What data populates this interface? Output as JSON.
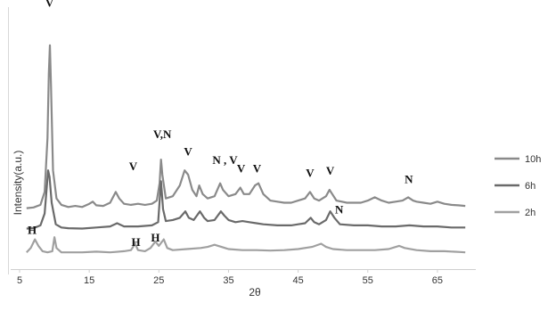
{
  "chart_data": {
    "type": "line",
    "xlabel": "2θ",
    "ylabel": "Intensity(a.u.)",
    "xlim": [
      5,
      70
    ],
    "x_ticks": [
      5,
      15,
      25,
      35,
      45,
      55,
      65
    ],
    "ylim": [
      0,
      100
    ],
    "legend_position": "right",
    "series": [
      {
        "name": "10h",
        "color": "#8a8a8a",
        "points": [
          [
            6,
            22.5
          ],
          [
            7,
            22.8
          ],
          [
            8,
            24
          ],
          [
            8.6,
            30
          ],
          [
            9,
            55
          ],
          [
            9.2,
            85
          ],
          [
            9.35,
            98
          ],
          [
            9.5,
            80
          ],
          [
            9.8,
            40
          ],
          [
            10.3,
            27
          ],
          [
            11,
            24
          ],
          [
            12,
            23
          ],
          [
            13,
            23.5
          ],
          [
            14,
            23
          ],
          [
            15,
            24.5
          ],
          [
            15.5,
            25.5
          ],
          [
            16,
            23.8
          ],
          [
            17,
            23.5
          ],
          [
            18,
            25
          ],
          [
            18.8,
            30
          ],
          [
            19.3,
            27
          ],
          [
            20,
            24.5
          ],
          [
            21,
            24
          ],
          [
            22,
            24.5
          ],
          [
            23,
            24
          ],
          [
            24,
            24.5
          ],
          [
            24.7,
            26
          ],
          [
            25.1,
            34
          ],
          [
            25.3,
            45
          ],
          [
            25.5,
            38
          ],
          [
            26,
            27
          ],
          [
            27,
            28
          ],
          [
            28,
            33
          ],
          [
            28.7,
            40
          ],
          [
            29.2,
            38
          ],
          [
            29.8,
            31
          ],
          [
            30.4,
            28
          ],
          [
            30.8,
            33
          ],
          [
            31.3,
            29
          ],
          [
            32,
            27
          ],
          [
            33,
            28
          ],
          [
            33.8,
            34
          ],
          [
            34.2,
            31
          ],
          [
            35,
            28
          ],
          [
            36,
            29
          ],
          [
            36.7,
            32
          ],
          [
            37.2,
            29
          ],
          [
            38,
            29
          ],
          [
            38.8,
            33
          ],
          [
            39.3,
            34
          ],
          [
            40,
            29
          ],
          [
            41,
            26
          ],
          [
            42,
            25.5
          ],
          [
            43,
            25
          ],
          [
            44,
            25
          ],
          [
            45,
            26
          ],
          [
            46,
            27
          ],
          [
            46.7,
            30
          ],
          [
            47.3,
            27
          ],
          [
            48,
            26
          ],
          [
            49,
            28
          ],
          [
            49.5,
            31
          ],
          [
            49.9,
            29
          ],
          [
            50.5,
            26
          ],
          [
            52,
            25
          ],
          [
            54,
            25
          ],
          [
            55,
            26
          ],
          [
            56,
            27.5
          ],
          [
            57,
            26
          ],
          [
            58,
            25
          ],
          [
            59,
            25.5
          ],
          [
            60,
            26
          ],
          [
            60.8,
            27.5
          ],
          [
            61.5,
            26
          ],
          [
            62,
            25.5
          ],
          [
            63,
            25
          ],
          [
            64,
            24.5
          ],
          [
            65,
            25.5
          ],
          [
            66,
            24.5
          ],
          [
            67,
            24
          ],
          [
            68,
            23.8
          ],
          [
            69,
            23.5
          ]
        ]
      },
      {
        "name": "6h",
        "color": "#6a6a6a",
        "points": [
          [
            6,
            13
          ],
          [
            7,
            13.2
          ],
          [
            8,
            14.5
          ],
          [
            8.6,
            20
          ],
          [
            9.1,
            40
          ],
          [
            9.3,
            37
          ],
          [
            9.6,
            25
          ],
          [
            10.2,
            15
          ],
          [
            11,
            13.5
          ],
          [
            12,
            13.2
          ],
          [
            14,
            13
          ],
          [
            16,
            13.5
          ],
          [
            18,
            14
          ],
          [
            19,
            15.5
          ],
          [
            20,
            14
          ],
          [
            22,
            14
          ],
          [
            24,
            14.5
          ],
          [
            24.9,
            16
          ],
          [
            25.3,
            35
          ],
          [
            25.6,
            22
          ],
          [
            26,
            16.5
          ],
          [
            27,
            17
          ],
          [
            28,
            18
          ],
          [
            28.8,
            21
          ],
          [
            29.3,
            18
          ],
          [
            30,
            17
          ],
          [
            30.9,
            21
          ],
          [
            31.5,
            18
          ],
          [
            32,
            16.5
          ],
          [
            33,
            17
          ],
          [
            33.9,
            21
          ],
          [
            34.4,
            19
          ],
          [
            35,
            17
          ],
          [
            36,
            16
          ],
          [
            37,
            16.5
          ],
          [
            38,
            16
          ],
          [
            39,
            15.5
          ],
          [
            40,
            15
          ],
          [
            42,
            14.5
          ],
          [
            44,
            14.5
          ],
          [
            45,
            15
          ],
          [
            46,
            15.5
          ],
          [
            46.8,
            18
          ],
          [
            47.3,
            16
          ],
          [
            48,
            15
          ],
          [
            49,
            17
          ],
          [
            49.6,
            21
          ],
          [
            50.2,
            18
          ],
          [
            51,
            15
          ],
          [
            53,
            14.5
          ],
          [
            55,
            14.5
          ],
          [
            57,
            14
          ],
          [
            59,
            14
          ],
          [
            61,
            14.5
          ],
          [
            63,
            14
          ],
          [
            65,
            14
          ],
          [
            67,
            13.5
          ],
          [
            69,
            13.5
          ]
        ]
      },
      {
        "name": "2h",
        "color": "#a0a0a0",
        "points": [
          [
            6,
            2
          ],
          [
            6.6,
            4
          ],
          [
            7.2,
            8
          ],
          [
            7.7,
            5
          ],
          [
            8.3,
            2.5
          ],
          [
            9,
            2
          ],
          [
            9.7,
            2.5
          ],
          [
            10,
            9
          ],
          [
            10.3,
            4
          ],
          [
            11,
            2
          ],
          [
            12,
            2
          ],
          [
            14,
            2
          ],
          [
            16,
            2.3
          ],
          [
            18,
            2
          ],
          [
            20,
            2.5
          ],
          [
            21,
            3
          ],
          [
            21.6,
            6
          ],
          [
            22,
            3
          ],
          [
            23,
            2.5
          ],
          [
            23.8,
            4
          ],
          [
            24.5,
            7
          ],
          [
            25,
            5
          ],
          [
            25.7,
            8
          ],
          [
            26.2,
            4
          ],
          [
            27,
            3
          ],
          [
            29,
            3.5
          ],
          [
            31,
            4
          ],
          [
            32,
            4.5
          ],
          [
            33,
            5.5
          ],
          [
            34,
            4.5
          ],
          [
            35,
            3.5
          ],
          [
            37,
            3
          ],
          [
            39,
            3
          ],
          [
            41,
            2.8
          ],
          [
            43,
            3
          ],
          [
            45,
            3.5
          ],
          [
            47,
            4.5
          ],
          [
            48.3,
            6
          ],
          [
            49,
            4.5
          ],
          [
            50,
            3.5
          ],
          [
            52,
            3
          ],
          [
            54,
            3
          ],
          [
            56,
            3
          ],
          [
            58,
            3.5
          ],
          [
            59.5,
            5
          ],
          [
            60.3,
            4
          ],
          [
            62,
            3
          ],
          [
            64,
            2.5
          ],
          [
            66,
            2.5
          ],
          [
            68,
            2.2
          ],
          [
            69,
            2
          ]
        ]
      }
    ],
    "annotations": [
      {
        "text": "V",
        "x": 9.3,
        "y": 116
      },
      {
        "text": "V",
        "x": 21.3,
        "y": 40
      },
      {
        "text": "V,N",
        "x": 25.5,
        "y": 55
      },
      {
        "text": "V",
        "x": 29.2,
        "y": 47
      },
      {
        "text": "N , V",
        "x": 34.5,
        "y": 43
      },
      {
        "text": "V",
        "x": 36.8,
        "y": 39
      },
      {
        "text": "V",
        "x": 39.1,
        "y": 39
      },
      {
        "text": "V",
        "x": 46.7,
        "y": 37
      },
      {
        "text": "V",
        "x": 49.6,
        "y": 38
      },
      {
        "text": "N",
        "x": 60.9,
        "y": 34
      },
      {
        "text": "N",
        "x": 50.9,
        "y": 20
      },
      {
        "text": "H",
        "x": 6.8,
        "y": 10.5
      },
      {
        "text": "H",
        "x": 21.7,
        "y": 5
      },
      {
        "text": "H",
        "x": 24.5,
        "y": 7
      }
    ]
  }
}
